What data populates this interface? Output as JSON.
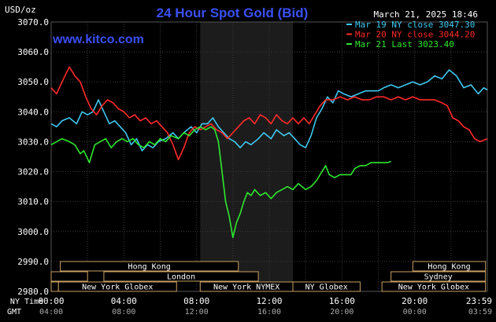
{
  "header": {
    "title": "24 Hour Spot Gold (Bid)",
    "timestamp": "March 21, 2025 18:46",
    "unit_label": "USD/oz",
    "watermark": "www.kitco.com"
  },
  "colors": {
    "background": "#000000",
    "plot_background": "#000000",
    "highlight_band": "#1c1c1c",
    "grid": "#3a3a3a",
    "axis_text": "#ffffff",
    "title": "#3b4ff5",
    "watermark": "#3b4ff5",
    "session_box_fill": "#000000",
    "session_box_border": "#c9a064",
    "session_text": "#ffffff"
  },
  "axis_labels": {
    "ny_time": "NY Time",
    "gmt": "GMT"
  },
  "sessions": [
    {
      "label": "Hong Kong",
      "start": 0.5,
      "end": 10.3,
      "row": 0
    },
    {
      "label": "Hong Kong",
      "start": 19.9,
      "end": 23.9,
      "row": 0
    },
    {
      "label": "",
      "start": 0.0,
      "end": 2.0,
      "row": 1
    },
    {
      "label": "London",
      "start": 2.9,
      "end": 11.4,
      "row": 1
    },
    {
      "label": "Sydney",
      "start": 18.7,
      "end": 23.9,
      "row": 1
    },
    {
      "label": "",
      "start": 0.0,
      "end": 0.4,
      "row": 2
    },
    {
      "label": "New York Globex",
      "start": 0.4,
      "end": 6.9,
      "row": 2
    },
    {
      "label": "New York NYMEX",
      "start": 8.2,
      "end": 13.3,
      "row": 2
    },
    {
      "label": "NY Globex",
      "start": 13.3,
      "end": 17.0,
      "row": 2
    },
    {
      "label": "New York Globex",
      "start": 18.2,
      "end": 23.9,
      "row": 2
    }
  ],
  "chart_data": {
    "type": "line",
    "title": "24 Hour Spot Gold (Bid)",
    "ylabel": "USD/oz",
    "xlabel": "NY Time",
    "ylim": [
      2980,
      3070
    ],
    "yticks": [
      2980,
      2990,
      3000,
      3010,
      3020,
      3030,
      3040,
      3050,
      3060,
      3070
    ],
    "ytick_labels": [
      "2980.0",
      "2990.0",
      "3000.0",
      "3010.0",
      "3020.0",
      "3030.0",
      "3040.0",
      "3050.0",
      "3060.0",
      "3070.0"
    ],
    "xlim": [
      0,
      24
    ],
    "xticks": [
      0,
      4,
      8,
      12,
      16,
      20,
      24
    ],
    "xtick_labels_ny": [
      "00:00",
      "04:00",
      "08:00",
      "12:00",
      "16:00",
      "20:00",
      "23:59"
    ],
    "xtick_labels_gmt": [
      "04:00",
      "08:00",
      "12:00",
      "16:00",
      "20:00",
      "00:00",
      "03:59"
    ],
    "nymex_band": [
      8.2,
      13.3
    ],
    "grid": true,
    "legend_position": "top-right",
    "series": [
      {
        "name": "Mar 19 NY close 3047.30",
        "color": "#3fc8f0",
        "points": [
          [
            0,
            3036
          ],
          [
            0.3,
            3035
          ],
          [
            0.6,
            3037
          ],
          [
            1.0,
            3038
          ],
          [
            1.4,
            3036
          ],
          [
            1.7,
            3040
          ],
          [
            2.0,
            3039
          ],
          [
            2.3,
            3040
          ],
          [
            2.6,
            3044
          ],
          [
            2.9,
            3040
          ],
          [
            3.2,
            3036
          ],
          [
            3.5,
            3037
          ],
          [
            3.8,
            3035
          ],
          [
            4.1,
            3033
          ],
          [
            4.4,
            3029
          ],
          [
            4.7,
            3031
          ],
          [
            5.0,
            3027
          ],
          [
            5.3,
            3029
          ],
          [
            5.6,
            3028
          ],
          [
            5.9,
            3030
          ],
          [
            6.3,
            3031
          ],
          [
            6.7,
            3033
          ],
          [
            7.0,
            3031
          ],
          [
            7.3,
            3033
          ],
          [
            7.7,
            3035
          ],
          [
            8.0,
            3033
          ],
          [
            8.3,
            3036
          ],
          [
            8.6,
            3036
          ],
          [
            8.9,
            3038
          ],
          [
            9.2,
            3035
          ],
          [
            9.5,
            3033
          ],
          [
            9.8,
            3031
          ],
          [
            10.1,
            3030
          ],
          [
            10.4,
            3028
          ],
          [
            10.7,
            3030
          ],
          [
            11.0,
            3029
          ],
          [
            11.4,
            3031
          ],
          [
            11.7,
            3033
          ],
          [
            12.1,
            3031
          ],
          [
            12.4,
            3034
          ],
          [
            12.8,
            3032
          ],
          [
            13.1,
            3033
          ],
          [
            13.4,
            3031
          ],
          [
            13.7,
            3029
          ],
          [
            14.0,
            3028
          ],
          [
            14.3,
            3032
          ],
          [
            14.6,
            3038
          ],
          [
            14.9,
            3041
          ],
          [
            15.2,
            3045
          ],
          [
            15.5,
            3043
          ],
          [
            15.8,
            3047
          ],
          [
            16.1,
            3046
          ],
          [
            16.5,
            3045
          ],
          [
            16.9,
            3046
          ],
          [
            17.3,
            3047
          ],
          [
            17.7,
            3047
          ],
          [
            18.0,
            3047
          ],
          [
            18.3,
            3048
          ],
          [
            18.7,
            3049
          ],
          [
            19.1,
            3048
          ],
          [
            19.5,
            3049
          ],
          [
            19.9,
            3050
          ],
          [
            20.3,
            3049
          ],
          [
            20.7,
            3050
          ],
          [
            21.1,
            3052
          ],
          [
            21.5,
            3051
          ],
          [
            21.9,
            3054
          ],
          [
            22.3,
            3052
          ],
          [
            22.7,
            3048
          ],
          [
            23.1,
            3049
          ],
          [
            23.5,
            3046
          ],
          [
            23.8,
            3048
          ],
          [
            24.0,
            3047.3
          ]
        ]
      },
      {
        "name": "Mar 20 NY close 3044.20",
        "color": "#ff2a2a",
        "points": [
          [
            0,
            3048
          ],
          [
            0.3,
            3046
          ],
          [
            0.6,
            3050
          ],
          [
            1.0,
            3055
          ],
          [
            1.3,
            3052
          ],
          [
            1.6,
            3050
          ],
          [
            1.9,
            3045
          ],
          [
            2.2,
            3041
          ],
          [
            2.5,
            3039
          ],
          [
            2.8,
            3042
          ],
          [
            3.1,
            3044
          ],
          [
            3.4,
            3043
          ],
          [
            3.7,
            3041
          ],
          [
            4.0,
            3040
          ],
          [
            4.3,
            3038
          ],
          [
            4.6,
            3039
          ],
          [
            4.9,
            3037
          ],
          [
            5.2,
            3038
          ],
          [
            5.5,
            3036
          ],
          [
            5.8,
            3037
          ],
          [
            6.1,
            3035
          ],
          [
            6.4,
            3033
          ],
          [
            6.7,
            3029
          ],
          [
            7.0,
            3024
          ],
          [
            7.3,
            3028
          ],
          [
            7.6,
            3033
          ],
          [
            7.9,
            3035
          ],
          [
            8.2,
            3034
          ],
          [
            8.5,
            3035
          ],
          [
            8.8,
            3036
          ],
          [
            9.1,
            3034
          ],
          [
            9.4,
            3033
          ],
          [
            9.7,
            3031
          ],
          [
            10.0,
            3033
          ],
          [
            10.3,
            3035
          ],
          [
            10.6,
            3037
          ],
          [
            10.9,
            3038
          ],
          [
            11.2,
            3036
          ],
          [
            11.5,
            3039
          ],
          [
            11.8,
            3038
          ],
          [
            12.1,
            3036
          ],
          [
            12.4,
            3039
          ],
          [
            12.7,
            3037
          ],
          [
            13.0,
            3036
          ],
          [
            13.3,
            3038
          ],
          [
            13.6,
            3036
          ],
          [
            13.9,
            3038
          ],
          [
            14.2,
            3036
          ],
          [
            14.5,
            3039
          ],
          [
            14.8,
            3042
          ],
          [
            15.1,
            3044
          ],
          [
            15.5,
            3044
          ],
          [
            15.9,
            3045
          ],
          [
            16.3,
            3044
          ],
          [
            16.7,
            3045
          ],
          [
            17.1,
            3044
          ],
          [
            17.5,
            3044
          ],
          [
            17.9,
            3045
          ],
          [
            18.3,
            3045
          ],
          [
            18.7,
            3044
          ],
          [
            19.1,
            3045
          ],
          [
            19.5,
            3044
          ],
          [
            19.9,
            3045
          ],
          [
            20.3,
            3044
          ],
          [
            20.7,
            3044
          ],
          [
            21.1,
            3044
          ],
          [
            21.5,
            3043
          ],
          [
            21.8,
            3042
          ],
          [
            22.1,
            3038
          ],
          [
            22.4,
            3037
          ],
          [
            22.7,
            3035
          ],
          [
            23.0,
            3034
          ],
          [
            23.3,
            3031
          ],
          [
            23.6,
            3030
          ],
          [
            24.0,
            3031
          ]
        ]
      },
      {
        "name": "Mar 21 Last 3023.40",
        "color": "#2ee82e",
        "points": [
          [
            0,
            3029
          ],
          [
            0.3,
            3030
          ],
          [
            0.6,
            3031
          ],
          [
            1.0,
            3030
          ],
          [
            1.3,
            3029
          ],
          [
            1.6,
            3026
          ],
          [
            1.8,
            3027
          ],
          [
            2.1,
            3023
          ],
          [
            2.4,
            3029
          ],
          [
            2.7,
            3030
          ],
          [
            3.0,
            3031
          ],
          [
            3.3,
            3028
          ],
          [
            3.6,
            3030
          ],
          [
            3.9,
            3031
          ],
          [
            4.2,
            3030
          ],
          [
            4.5,
            3031
          ],
          [
            4.8,
            3029
          ],
          [
            5.1,
            3028
          ],
          [
            5.4,
            3030
          ],
          [
            5.7,
            3029
          ],
          [
            6.0,
            3031
          ],
          [
            6.3,
            3030
          ],
          [
            6.6,
            3032
          ],
          [
            7.0,
            3031
          ],
          [
            7.3,
            3033
          ],
          [
            7.6,
            3032
          ],
          [
            7.9,
            3034
          ],
          [
            8.2,
            3035
          ],
          [
            8.5,
            3034
          ],
          [
            8.8,
            3035
          ],
          [
            9.0,
            3034
          ],
          [
            9.2,
            3030
          ],
          [
            9.4,
            3020
          ],
          [
            9.6,
            3010
          ],
          [
            9.8,
            3005
          ],
          [
            10.0,
            2998
          ],
          [
            10.2,
            3003
          ],
          [
            10.4,
            3006
          ],
          [
            10.6,
            3010
          ],
          [
            10.8,
            3013
          ],
          [
            11.0,
            3012
          ],
          [
            11.2,
            3014
          ],
          [
            11.5,
            3012
          ],
          [
            11.8,
            3013
          ],
          [
            12.1,
            3011
          ],
          [
            12.4,
            3013
          ],
          [
            12.7,
            3014
          ],
          [
            13.0,
            3015
          ],
          [
            13.3,
            3014
          ],
          [
            13.6,
            3016
          ],
          [
            14.0,
            3014
          ],
          [
            14.3,
            3015
          ],
          [
            14.6,
            3017
          ],
          [
            14.9,
            3020
          ],
          [
            15.1,
            3022
          ],
          [
            15.3,
            3019
          ],
          [
            15.6,
            3018
          ],
          [
            15.9,
            3019
          ],
          [
            16.2,
            3019
          ],
          [
            16.5,
            3019
          ],
          [
            16.7,
            3021
          ],
          [
            17.0,
            3022
          ],
          [
            17.3,
            3022
          ],
          [
            17.6,
            3023
          ],
          [
            17.9,
            3023
          ],
          [
            18.2,
            3023
          ],
          [
            18.5,
            3023
          ],
          [
            18.7,
            3023.4
          ]
        ]
      }
    ]
  }
}
